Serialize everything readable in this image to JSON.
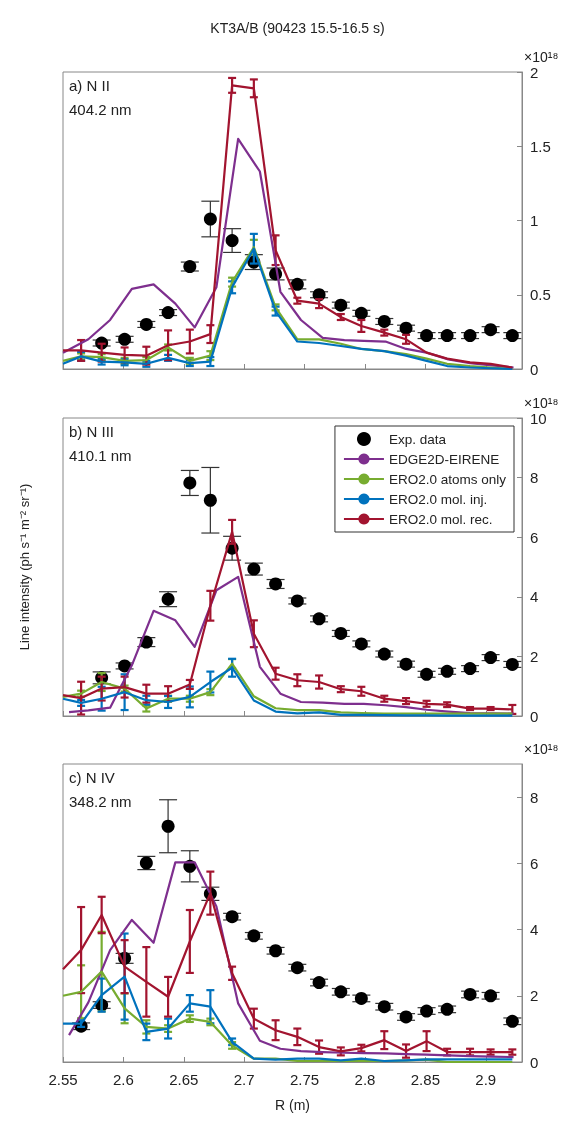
{
  "chart_data": [
    {
      "type": "line",
      "title": "KT3A/B (90423 15.5-16.5 s)",
      "annotations": [
        "a) N II",
        "404.2 nm",
        "×10¹⁸"
      ],
      "marker": "none",
      "tick_labels": "y",
      "legend": false,
      "x": [
        2.55,
        2.565,
        2.582,
        2.601,
        2.619,
        2.637,
        2.655,
        2.672,
        2.69,
        2.708,
        2.726,
        2.744,
        2.762,
        2.78,
        2.797,
        2.816,
        2.834,
        2.851,
        2.868,
        2.887,
        2.904,
        2.922
      ],
      "xlim": [
        2.55,
        2.93
      ],
      "xticks": [
        2.55,
        2.6,
        2.65,
        2.7,
        2.75,
        2.8,
        2.85,
        2.9
      ],
      "ylim": [
        0,
        2
      ],
      "yticks": [
        0,
        0.5,
        1,
        1.5,
        2
      ],
      "series": [
        {
          "type": "scatter",
          "marker": "circle",
          "color": "#000000",
          "values": [
            null,
            null,
            0.175,
            0.2,
            0.3,
            0.38,
            0.69,
            1.01,
            0.865,
            0.72,
            0.64,
            0.57,
            0.5,
            0.43,
            0.375,
            0.32,
            0.275,
            0.225,
            0.225,
            0.225,
            0.265,
            0.225
          ],
          "errors": [
            null,
            null,
            0.02,
            0.02,
            0.02,
            0.02,
            0.03,
            0.12,
            0.08,
            0.05,
            0.04,
            0.03,
            0.02,
            0.02,
            0.02,
            0.02,
            0.02,
            0.02,
            0.02,
            0.02,
            0.02,
            0.02
          ]
        },
        {
          "color": "#7e2f8e",
          "x": [
            2.55,
            2.571,
            2.589,
            2.607,
            2.625,
            2.643,
            2.659,
            2.677,
            2.695,
            2.713,
            2.73,
            2.747,
            2.765,
            2.783,
            2.799,
            2.817,
            2.834,
            2.851,
            2.869,
            2.887,
            2.905,
            2.923
          ],
          "values": [
            0.11,
            0.2,
            0.33,
            0.54,
            0.57,
            0.44,
            0.28,
            0.55,
            1.55,
            1.33,
            0.52,
            0.33,
            0.21,
            0.195,
            0.19,
            0.185,
            0.135,
            0.11,
            0.065,
            0.04,
            0.025,
            0.01
          ]
        },
        {
          "color": "#77ac30",
          "values": [
            0.055,
            0.085,
            0.08,
            0.055,
            0.06,
            0.145,
            0.055,
            0.09,
            0.585,
            0.82,
            0.415,
            0.2,
            0.2,
            0.17,
            0.135,
            0.12,
            0.1,
            0.07,
            0.035,
            0.02,
            0.01,
            0
          ],
          "errors": [
            null,
            0.02,
            0.02,
            0.02,
            0.02,
            0.02,
            0.02,
            0.03,
            0.03,
            0.05,
            0.02,
            null,
            null,
            null,
            null,
            null,
            null,
            null,
            null,
            null,
            null,
            null
          ]
        },
        {
          "color": "#0072bd",
          "values": [
            0.035,
            0.085,
            0.05,
            0.045,
            0.035,
            0.075,
            0.04,
            0.05,
            0.55,
            0.81,
            0.39,
            0.185,
            0.175,
            0.155,
            0.135,
            0.12,
            0.09,
            0.055,
            0.02,
            0.01,
            0.005,
            0
          ],
          "errors": [
            null,
            0.03,
            0.02,
            0.02,
            0.02,
            0.02,
            0.02,
            0.03,
            0.04,
            0.1,
            0.03,
            null,
            null,
            null,
            null,
            null,
            null,
            null,
            null,
            null,
            null,
            null
          ]
        },
        {
          "color": "#a2142f",
          "values": [
            0.125,
            0.125,
            0.11,
            0.095,
            0.09,
            0.16,
            0.185,
            0.235,
            1.91,
            1.89,
            0.8,
            0.46,
            0.44,
            0.35,
            0.29,
            0.245,
            0.2,
            0.11,
            0.07,
            0.045,
            0.035,
            0.01
          ],
          "errors": [
            null,
            0.07,
            0.06,
            0.05,
            0.06,
            0.1,
            0.08,
            0.06,
            0.05,
            0.06,
            0.1,
            0.02,
            0.03,
            0.02,
            0.04,
            0.02,
            0.03,
            null,
            null,
            null,
            null,
            null
          ]
        }
      ]
    },
    {
      "type": "line",
      "ylabel": "Line intensity (ph s⁻¹ m⁻² sr⁻¹)",
      "annotations": [
        "b) N III",
        "410.1 nm",
        "×10¹⁸"
      ],
      "marker": "none",
      "tick_labels": "y",
      "legend": "top right",
      "x": [
        2.55,
        2.565,
        2.582,
        2.601,
        2.619,
        2.637,
        2.655,
        2.672,
        2.69,
        2.708,
        2.726,
        2.744,
        2.762,
        2.78,
        2.797,
        2.816,
        2.834,
        2.851,
        2.868,
        2.887,
        2.904,
        2.922
      ],
      "xlim": [
        2.55,
        2.93
      ],
      "xticks": [
        2.55,
        2.6,
        2.65,
        2.7,
        2.75,
        2.8,
        2.85,
        2.9
      ],
      "ylim": [
        0,
        10
      ],
      "yticks": [
        0,
        2,
        4,
        6,
        8,
        10
      ],
      "series": [
        {
          "name": "Exp. data",
          "type": "scatter",
          "marker": "circle",
          "color": "#000000",
          "values": [
            null,
            null,
            1.28,
            1.68,
            2.48,
            3.92,
            7.82,
            7.24,
            5.63,
            4.93,
            4.43,
            3.86,
            3.26,
            2.77,
            2.42,
            2.08,
            1.74,
            1.4,
            1.5,
            1.59,
            1.96,
            1.73
          ],
          "errors": [
            null,
            null,
            0.2,
            0.1,
            0.15,
            0.25,
            0.42,
            1.1,
            0.4,
            0.2,
            0.15,
            0.1,
            0.1,
            0.1,
            0.1,
            0.1,
            0.1,
            0.1,
            0.1,
            0.1,
            0.1,
            0.1
          ]
        },
        {
          "name": "EDGE2D-EIRENE",
          "color": "#7e2f8e",
          "x": [
            2.555,
            2.571,
            2.589,
            2.607,
            2.625,
            2.643,
            2.659,
            2.677,
            2.695,
            2.713,
            2.73,
            2.747,
            2.765,
            2.783,
            2.799,
            2.817,
            2.834,
            2.851,
            2.869,
            2.887,
            2.905,
            2.923
          ],
          "values": [
            0.13,
            0.19,
            0.28,
            1.7,
            3.53,
            3.21,
            2.32,
            4.22,
            4.67,
            1.65,
            0.75,
            0.47,
            0.45,
            0.41,
            0.41,
            0.36,
            0.3,
            0.21,
            0.15,
            0.1,
            0.09,
            0.08
          ]
        },
        {
          "name": "ERO2.0 atoms only",
          "color": "#77ac30",
          "values": [
            0.64,
            0.75,
            1.14,
            0.92,
            0.25,
            0.58,
            0.58,
            0.8,
            1.76,
            0.66,
            0.26,
            0.2,
            0.2,
            0.12,
            0.1,
            0.08,
            0.08,
            0.08,
            0.08,
            0.08,
            0.08,
            0.08
          ],
          "errors": [
            null,
            0.1,
            0.3,
            0.1,
            0.1,
            0.1,
            0.1,
            0.1,
            0.15,
            null,
            null,
            null,
            null,
            null,
            null,
            null,
            null,
            null,
            null,
            null,
            null,
            null
          ]
        },
        {
          "name": "ERO2.0 mol. inj.",
          "color": "#0072bd",
          "values": [
            0.58,
            0.44,
            0.58,
            0.8,
            0.53,
            0.47,
            0.64,
            1.14,
            1.62,
            0.52,
            0.15,
            0.09,
            0.12,
            0.04,
            0.04,
            0.03,
            0.02,
            0.02,
            0.01,
            0.01,
            0.01,
            0.01
          ],
          "errors": [
            null,
            0.1,
            0.4,
            0.6,
            0.15,
            0.2,
            0.35,
            0.35,
            0.3,
            null,
            null,
            null,
            null,
            null,
            null,
            null,
            null,
            null,
            null,
            null,
            null,
            null
          ]
        },
        {
          "name": "ERO2.0 mol. rec.",
          "color": "#a2142f",
          "values": [
            0.7,
            0.6,
            0.92,
            0.97,
            0.75,
            0.75,
            1.06,
            3.7,
            6.18,
            2.76,
            1.42,
            1.2,
            1.14,
            0.9,
            0.83,
            0.58,
            0.5,
            0.41,
            0.38,
            0.25,
            0.25,
            0.22
          ],
          "errors": [
            null,
            0.55,
            0.4,
            0.35,
            0.3,
            0.25,
            0.15,
            0.5,
            0.4,
            0.45,
            0.2,
            0.2,
            0.22,
            0.1,
            0.15,
            0.1,
            0.1,
            0.1,
            0.08,
            0.05,
            0.05,
            0.15
          ]
        }
      ]
    },
    {
      "type": "line",
      "xlabel": "R (m)",
      "annotations": [
        "c) N IV",
        "348.2 nm",
        "×10¹⁸"
      ],
      "marker": "none",
      "legend": false,
      "x": [
        2.55,
        2.565,
        2.582,
        2.601,
        2.619,
        2.637,
        2.655,
        2.672,
        2.69,
        2.708,
        2.726,
        2.744,
        2.762,
        2.78,
        2.797,
        2.816,
        2.834,
        2.851,
        2.868,
        2.887,
        2.904,
        2.922
      ],
      "xlim": [
        2.55,
        2.93
      ],
      "xticks": [
        2.55,
        2.6,
        2.65,
        2.7,
        2.75,
        2.8,
        2.85,
        2.9
      ],
      "ylim": [
        0,
        9
      ],
      "yticks": [
        0,
        2,
        4,
        6,
        8
      ],
      "series": [
        {
          "type": "scatter",
          "marker": "circle",
          "color": "#000000",
          "values": [
            null,
            1.08,
            1.72,
            3.13,
            6.01,
            7.12,
            5.91,
            5.08,
            4.39,
            3.81,
            3.36,
            2.85,
            2.4,
            2.12,
            1.92,
            1.67,
            1.36,
            1.54,
            1.59,
            2.04,
            2.0,
            1.23
          ],
          "errors": [
            null,
            0.1,
            0.1,
            0.15,
            0.2,
            0.8,
            0.47,
            0.2,
            0.1,
            0.1,
            0.1,
            0.1,
            0.1,
            0.1,
            0.1,
            0.1,
            0.1,
            0.1,
            0.1,
            0.1,
            0.1,
            0.1
          ]
        },
        {
          "color": "#7e2f8e",
          "x": [
            2.555,
            2.571,
            2.589,
            2.607,
            2.625,
            2.643,
            2.659,
            2.677,
            2.695,
            2.713,
            2.73,
            2.747,
            2.765,
            2.783,
            2.799,
            2.817,
            2.834,
            2.851,
            2.869,
            2.887,
            2.905,
            2.923
          ],
          "values": [
            0.81,
            1.8,
            3.38,
            4.29,
            3.6,
            6.03,
            6.03,
            4.7,
            1.77,
            0.64,
            0.4,
            0.33,
            0.3,
            0.28,
            0.27,
            0.26,
            0.24,
            0.22,
            0.2,
            0.18,
            0.16,
            0.15
          ]
        },
        {
          "color": "#77ac30",
          "values": [
            2.0,
            2.12,
            2.73,
            1.62,
            1.06,
            1.01,
            1.31,
            1.21,
            0.5,
            0.1,
            0.1,
            0.03,
            0.03,
            0.03,
            0.03,
            0.03,
            0.05,
            0.07,
            0,
            0,
            0,
            0
          ],
          "errors": [
            null,
            0.8,
            1.2,
            0.45,
            0.2,
            0.1,
            0.1,
            0.1,
            0.1,
            null,
            null,
            null,
            null,
            null,
            null,
            null,
            null,
            null,
            null,
            null,
            null,
            null
          ]
        },
        {
          "color": "#0072bd",
          "values": [
            1.16,
            1.16,
            2.02,
            2.58,
            0.91,
            1.01,
            1.77,
            1.67,
            0.61,
            0.1,
            0.07,
            0.1,
            0.1,
            0.05,
            0.1,
            0.03,
            0.05,
            0.08,
            0.08,
            0.08,
            0.08,
            0.08
          ],
          "errors": [
            null,
            0.1,
            0.5,
            1.3,
            0.25,
            0.3,
            0.25,
            0.5,
            0.1,
            null,
            null,
            null,
            null,
            null,
            null,
            null,
            null,
            null,
            null,
            null,
            null,
            null
          ]
        },
        {
          "color": "#a2142f",
          "values": [
            2.8,
            3.38,
            4.44,
            2.88,
            2.42,
            1.97,
            3.64,
            5.1,
            2.68,
            1.31,
            0.96,
            0.76,
            0.45,
            0.32,
            0.42,
            0.66,
            0.33,
            0.63,
            0.3,
            0.3,
            0.3,
            0.3
          ],
          "errors": [
            null,
            1.3,
            0.55,
            0.8,
            1.05,
            0.6,
            0.95,
            0.65,
            0.2,
            0.3,
            0.3,
            0.25,
            0.2,
            0.12,
            0.1,
            0.27,
            0.2,
            0.3,
            0.1,
            0.1,
            0.08,
            0.08
          ]
        }
      ]
    }
  ]
}
